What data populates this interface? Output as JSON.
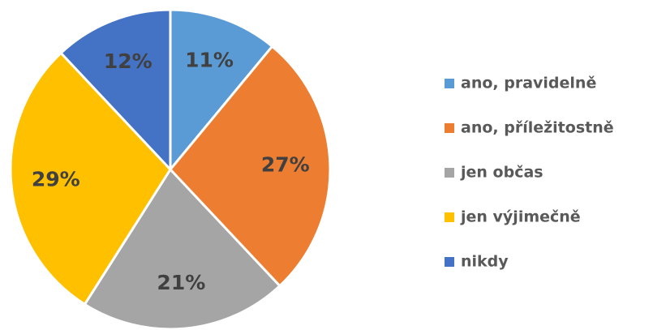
{
  "chart_data": {
    "type": "pie",
    "categories": [
      "ano, pravidelně",
      "ano, příležitostně",
      "jen občas",
      "jen výjimečně",
      "nikdy"
    ],
    "values": [
      11,
      27,
      21,
      29,
      12
    ],
    "value_labels": [
      "11%",
      "27%",
      "21%",
      "29%",
      "12%"
    ],
    "colors": [
      "#5b9bd5",
      "#ed7d31",
      "#a5a5a5",
      "#ffc000",
      "#4472c4"
    ],
    "legend": "right"
  }
}
